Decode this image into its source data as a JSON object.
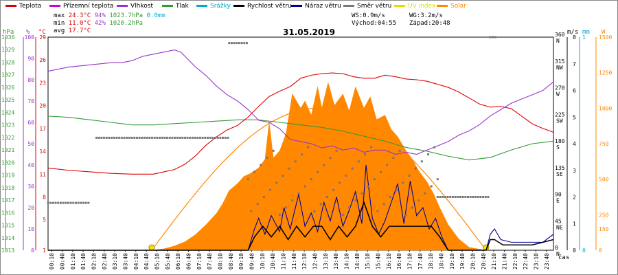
{
  "legend": [
    {
      "label": "Teplota",
      "color": "#dd0000"
    },
    {
      "label": "Přízemní teplota",
      "color": "#cc00cc"
    },
    {
      "label": "Vlhkost",
      "color": "#9933cc"
    },
    {
      "label": "Tlak",
      "color": "#339933"
    },
    {
      "label": "Srážky",
      "color": "#00aacc"
    },
    {
      "label": "Rychlost větru",
      "color": "#000000"
    },
    {
      "label": "Náraz větru",
      "color": "#000099"
    },
    {
      "label": "Směr větru",
      "color": "#777777"
    },
    {
      "label": "UV index",
      "color": "#dddd00"
    },
    {
      "label": "Solar",
      "color": "#ff8800"
    }
  ],
  "stats": {
    "max_label": "max",
    "max_temp": "24.3°C",
    "max_hum": "94%",
    "max_press": "1023.7hPa",
    "max_rain": "0.0mm",
    "min_label": "min",
    "min_temp": "11.0°C",
    "min_hum": "42%",
    "min_press": "1020.2hPa",
    "avg_label": "avg",
    "avg_temp": "17.7°C"
  },
  "wind_info": {
    "ws": "WS:0.9m/s",
    "wg": "WG:3.2m/s",
    "sunrise": "Východ:04:55",
    "sunset": "Západ:20:48"
  },
  "date": "31.05.2019",
  "axis_titles": {
    "hpa": "hPa",
    "pct": "%",
    "degc": "°C",
    "ms": "m/s",
    "mm": "mm",
    "w": "W",
    "cas": "čas"
  },
  "chart_data": {
    "type": "line",
    "title": "31.05.2019",
    "x_ticks": [
      "00:10",
      "00:40",
      "01:10",
      "01:40",
      "02:10",
      "02:40",
      "03:10",
      "03:40",
      "04:10",
      "04:40",
      "05:10",
      "05:40",
      "06:10",
      "06:40",
      "07:10",
      "07:40",
      "08:10",
      "08:40",
      "09:10",
      "09:40",
      "10:10",
      "10:40",
      "11:10",
      "11:40",
      "12:10",
      "12:40",
      "13:10",
      "13:40",
      "14:10",
      "14:40",
      "15:10",
      "15:40",
      "16:10",
      "16:40",
      "17:10",
      "17:40",
      "18:10",
      "18:40",
      "19:10",
      "19:40",
      "20:10",
      "20:40",
      "21:10",
      "21:40",
      "22:10",
      "22:40",
      "23:10",
      "23:40"
    ],
    "axes": {
      "pressure": {
        "ticks": [
          "1013",
          "1014",
          "1015",
          "1016",
          "1017",
          "1018",
          "1019",
          "1020",
          "1021",
          "1022",
          "1023",
          "1024",
          "1025",
          "1026",
          "1027",
          "1028",
          "1029",
          "1030"
        ],
        "range": [
          1013,
          1030
        ]
      },
      "humidity": {
        "ticks": [
          "0",
          "10",
          "20",
          "30",
          "40",
          "50",
          "60",
          "70",
          "80",
          "90",
          "100"
        ],
        "range": [
          0,
          100
        ]
      },
      "temperature": {
        "ticks": [
          "1",
          "5",
          "8",
          "11",
          "14",
          "17",
          "20",
          "23",
          "26",
          "29"
        ],
        "range": [
          1,
          29
        ]
      },
      "wind_dir": {
        "ticks": [
          {
            "deg": "0",
            "dir": "N"
          },
          {
            "deg": "45",
            "dir": "NE"
          },
          {
            "deg": "90",
            "dir": "E"
          },
          {
            "deg": "135",
            "dir": "SE"
          },
          {
            "deg": "180",
            "dir": "S"
          },
          {
            "deg": "225",
            "dir": "SW"
          },
          {
            "deg": "270",
            "dir": "W"
          },
          {
            "deg": "315",
            "dir": "NW"
          },
          {
            "deg": "360",
            "dir": "N"
          }
        ]
      },
      "wind_speed": {
        "ticks": [
          "0",
          "1",
          "2",
          "3",
          "4",
          "5",
          "6",
          "7",
          "8"
        ],
        "range": [
          0,
          8
        ]
      },
      "rain": {
        "ticks": [
          "0",
          "1"
        ],
        "range": [
          0,
          1
        ]
      },
      "solar": {
        "ticks": [
          "0",
          "150",
          "250",
          "500",
          "750",
          "1000",
          "1250",
          "1500"
        ],
        "range": [
          0,
          1500
        ]
      }
    },
    "series": [
      {
        "name": "Teplota",
        "color": "#dd0000",
        "axis": "temperature",
        "x": [
          0,
          1,
          2,
          3,
          4,
          5,
          5.5,
          6,
          6.5,
          7,
          7.5,
          8,
          8.5,
          9,
          9.5,
          10,
          10.5,
          11,
          11.5,
          12,
          12.5,
          13,
          13.5,
          14,
          14.5,
          15,
          15.5,
          16,
          16.5,
          17,
          17.5,
          18,
          18.5,
          19,
          19.5,
          20,
          20.5,
          21,
          21.5,
          22,
          22.5,
          23,
          23.5,
          24
        ],
        "y": [
          11.8,
          11.5,
          11.3,
          11.1,
          11.0,
          11.0,
          11.3,
          11.6,
          12.3,
          13.4,
          14.8,
          15.9,
          16.8,
          17.4,
          18.5,
          19.9,
          21.2,
          21.9,
          22.5,
          23.6,
          24.0,
          24.2,
          24.3,
          24.2,
          23.8,
          23.6,
          23.6,
          24.0,
          23.8,
          23.5,
          23.4,
          23.2,
          22.8,
          22.4,
          21.8,
          21.0,
          20.2,
          19.8,
          19.9,
          19.6,
          18.6,
          17.6,
          17.0,
          16.5
        ]
      },
      {
        "name": "Vlhkost",
        "color": "#9933cc",
        "axis": "humidity",
        "x": [
          0,
          1,
          2,
          3,
          3.5,
          4,
          4.5,
          5,
          5.5,
          6,
          6.3,
          6.6,
          7,
          7.5,
          8,
          8.5,
          9,
          9.5,
          10,
          10.5,
          11,
          11.5,
          12,
          12.5,
          13,
          13.5,
          14,
          14.5,
          15,
          15.5,
          16,
          16.5,
          17,
          17.5,
          18,
          18.5,
          19,
          19.5,
          20,
          20.5,
          21,
          21.5,
          22,
          22.5,
          23,
          23.5,
          24
        ],
        "y": [
          84,
          86,
          87,
          88,
          88,
          89,
          91,
          92,
          93,
          94,
          93,
          90,
          86,
          82,
          77,
          73,
          70,
          66,
          61,
          60,
          57,
          52,
          51,
          50,
          48,
          49,
          47,
          48,
          46,
          47,
          47,
          45,
          46,
          45,
          47,
          49,
          51,
          54,
          56,
          59,
          63,
          66,
          69,
          71,
          73,
          75,
          79
        ]
      },
      {
        "name": "Tlak",
        "color": "#339933",
        "axis": "pressure",
        "x": [
          0,
          1,
          2,
          3,
          4,
          5,
          6,
          7,
          8,
          9,
          10,
          11,
          12,
          13,
          14,
          15,
          16,
          17,
          18,
          19,
          20,
          21,
          22,
          23,
          24
        ],
        "y": [
          1023.7,
          1023.6,
          1023.4,
          1023.2,
          1023.0,
          1023.0,
          1023.1,
          1023.2,
          1023.3,
          1023.4,
          1023.4,
          1023.2,
          1023.0,
          1022.8,
          1022.5,
          1022.1,
          1021.7,
          1021.2,
          1020.9,
          1020.5,
          1020.2,
          1020.4,
          1021.0,
          1021.5,
          1021.7
        ]
      },
      {
        "name": "Rychlost větru",
        "color": "#000000",
        "axis": "wind_speed",
        "x": [
          0,
          9.5,
          9.8,
          10.2,
          10.6,
          11,
          11.4,
          11.8,
          12.2,
          12.6,
          13,
          13.4,
          13.8,
          14.2,
          14.6,
          15,
          15.4,
          15.8,
          16.2,
          16.6,
          17,
          17.4,
          17.8,
          18.2,
          18.6,
          19,
          20.8,
          21,
          21.2,
          21.6,
          22,
          23,
          24
        ],
        "y": [
          0,
          0,
          0.5,
          0.9,
          0.5,
          0.9,
          0.4,
          0.9,
          0.5,
          0.9,
          0.9,
          0.4,
          0.9,
          0.5,
          0.9,
          1.8,
          0.9,
          0.5,
          0.9,
          0.9,
          0.9,
          0.9,
          0.9,
          0.9,
          0.5,
          0,
          0,
          0.4,
          0.4,
          0.2,
          0.2,
          0.2,
          0.4
        ]
      },
      {
        "name": "Náraz větru",
        "color": "#000099",
        "axis": "wind_speed",
        "x": [
          0,
          9.5,
          9.8,
          10,
          10.3,
          10.6,
          11,
          11.2,
          11.5,
          11.9,
          12.2,
          12.5,
          12.8,
          13.1,
          13.4,
          13.7,
          14,
          14.3,
          14.6,
          14.9,
          15.1,
          15.4,
          15.7,
          16,
          16.3,
          16.6,
          16.9,
          17.2,
          17.5,
          17.8,
          18.1,
          18.4,
          18.7,
          19,
          20.8,
          21,
          21.2,
          21.5,
          22,
          23,
          23.5,
          24
        ],
        "y": [
          0,
          0,
          0.8,
          1.2,
          0.6,
          1.3,
          0.7,
          1.6,
          0.8,
          2.1,
          0.9,
          1.4,
          0.7,
          1.8,
          1.1,
          2.0,
          0.9,
          1.5,
          2.2,
          1.0,
          3.2,
          1.2,
          0.6,
          1.1,
          1.8,
          2.5,
          1.0,
          2.6,
          1.3,
          1.6,
          0.8,
          1.2,
          0.5,
          0,
          0,
          0.6,
          0.8,
          0.4,
          0.3,
          0.3,
          0.3,
          0.6
        ]
      },
      {
        "name": "Solar",
        "color": "#ff8800",
        "axis": "solar",
        "x": [
          4.9,
          5.5,
          6,
          6.5,
          7,
          7.5,
          8,
          8.3,
          8.6,
          9,
          9.3,
          9.6,
          10,
          10.3,
          10.5,
          10.7,
          11,
          11.3,
          11.6,
          12,
          12.2,
          12.5,
          12.8,
          13,
          13.3,
          13.6,
          14,
          14.3,
          14.6,
          15,
          15.3,
          15.6,
          16,
          16.3,
          16.6,
          17,
          17.3,
          17.6,
          18,
          18.3,
          18.6,
          19,
          19.5,
          20,
          20.8
        ],
        "y": [
          0,
          10,
          30,
          60,
          110,
          180,
          260,
          330,
          420,
          470,
          520,
          540,
          580,
          640,
          900,
          650,
          700,
          820,
          1100,
          1000,
          1050,
          950,
          1150,
          1000,
          1180,
          1020,
          1100,
          980,
          1150,
          1000,
          1080,
          920,
          950,
          850,
          800,
          700,
          640,
          560,
          480,
          400,
          300,
          180,
          80,
          20,
          0
        ]
      }
    ],
    "solar_theoretical_peak": 1000,
    "sunrise_h": 4.92,
    "sunset_h": 20.8
  }
}
